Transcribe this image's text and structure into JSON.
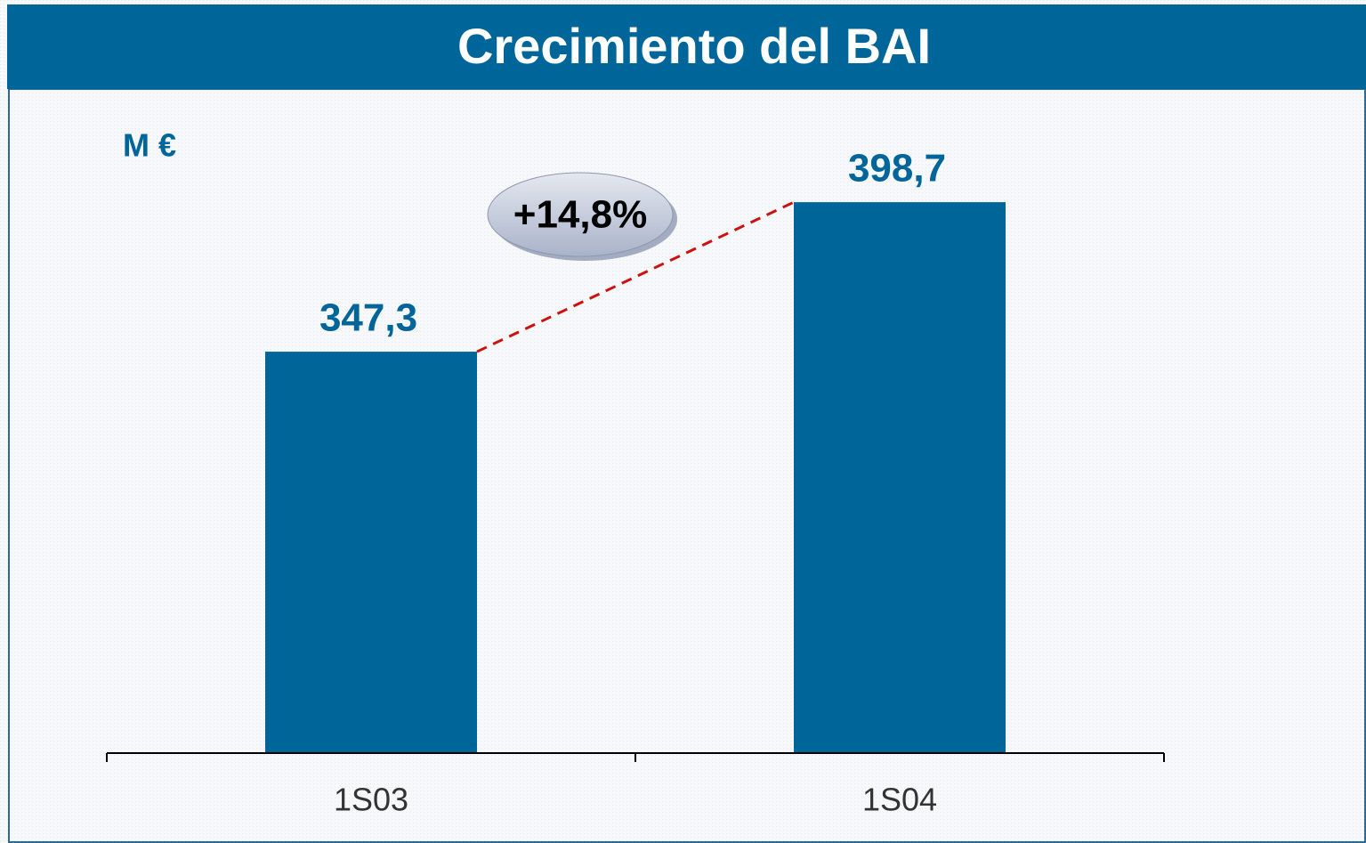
{
  "chart_data": {
    "type": "bar",
    "title": "Crecimiento del BAI",
    "unit_label": "M €",
    "annotation": "+14,8%",
    "categories": [
      "1S03",
      "1S04"
    ],
    "values": [
      347.3,
      398.7
    ],
    "value_labels": [
      "347,3",
      "398,7"
    ],
    "color": "#006699",
    "ylim": [
      209.3,
      437.6
    ],
    "grid": false
  }
}
